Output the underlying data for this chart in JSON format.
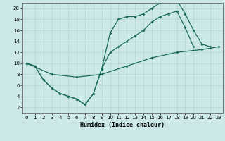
{
  "xlabel": "Humidex (Indice chaleur)",
  "bg_color": "#cce8e8",
  "line_color": "#1a6b5a",
  "grid_color": "#b8d8d8",
  "xlim": [
    -0.5,
    23.5
  ],
  "ylim": [
    1,
    21
  ],
  "xticks": [
    0,
    1,
    2,
    3,
    4,
    5,
    6,
    7,
    8,
    9,
    10,
    11,
    12,
    13,
    14,
    15,
    16,
    17,
    18,
    19,
    20,
    21,
    22,
    23
  ],
  "yticks": [
    2,
    4,
    6,
    8,
    10,
    12,
    14,
    16,
    18,
    20
  ],
  "line1_x": [
    0,
    1,
    2,
    3,
    4,
    5,
    6,
    7,
    8,
    9,
    10,
    11,
    12,
    13,
    14,
    15,
    16,
    17,
    18,
    19,
    20,
    21,
    22
  ],
  "line1_y": [
    10,
    9.5,
    7,
    5.5,
    4.5,
    4,
    3.5,
    2.5,
    4.5,
    9,
    15.5,
    18,
    18.5,
    18.5,
    19,
    20,
    21,
    21.5,
    21.5,
    19,
    16,
    13.5,
    13
  ],
  "line2_x": [
    0,
    1,
    2,
    3,
    4,
    5,
    6,
    7,
    8,
    9,
    10,
    11,
    12,
    13,
    14,
    15,
    16,
    17,
    18,
    19,
    20
  ],
  "line2_y": [
    10,
    9.5,
    7,
    5.5,
    4.5,
    4,
    3.5,
    2.5,
    4.5,
    9,
    12,
    13,
    14,
    15,
    16,
    17.5,
    18.5,
    19,
    19.5,
    16.5,
    13
  ],
  "line3_x": [
    0,
    3,
    6,
    9,
    12,
    15,
    18,
    21,
    23
  ],
  "line3_y": [
    10,
    8,
    7.5,
    8,
    9.5,
    11,
    12,
    12.5,
    13
  ]
}
